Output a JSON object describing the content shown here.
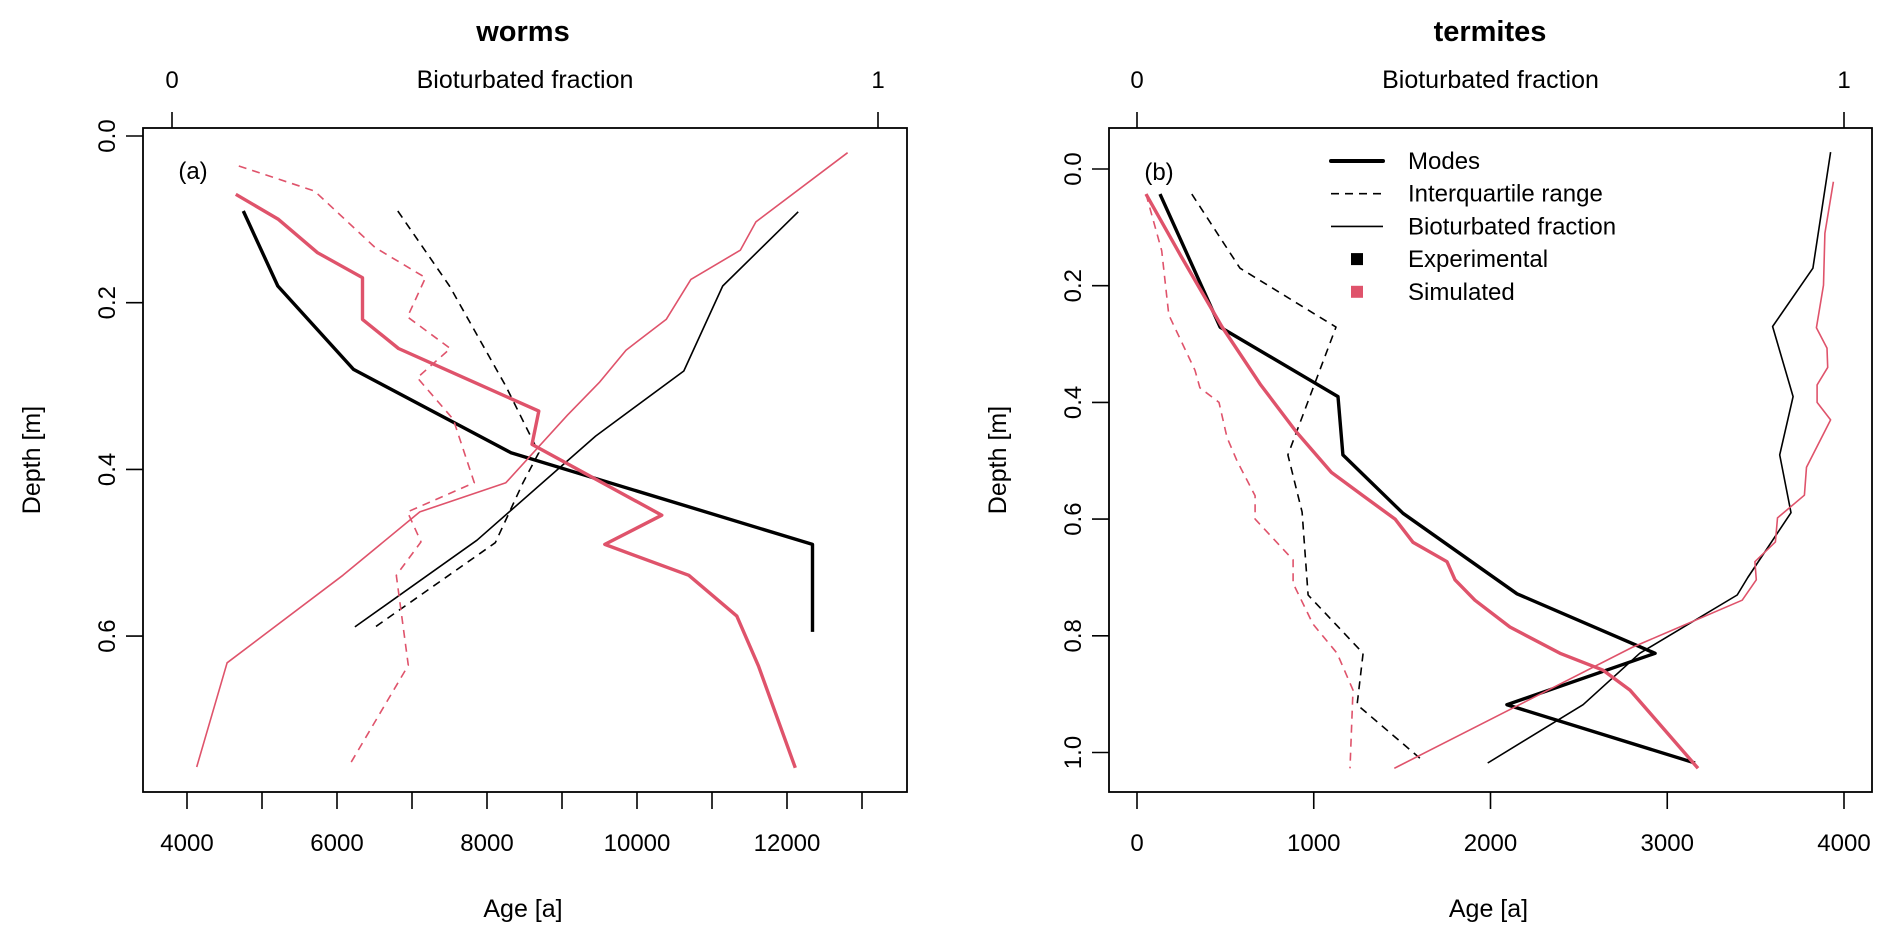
{
  "colors": {
    "experimental": "#000000",
    "simulated": "#DF536B"
  },
  "chart_data": [
    {
      "type": "line",
      "title": "worms",
      "panel_label": "(a)",
      "xlabel": "Age [a]",
      "ylabel": "Depth [m]",
      "top_axis_label": "Bioturbated fraction",
      "xlim": [
        3250,
        13550
      ],
      "ylim": [
        0.79,
        -0.01
      ],
      "xticks": [
        4000,
        5000,
        6000,
        7000,
        8000,
        9000,
        10000,
        11000,
        12000,
        13000
      ],
      "xtick_labels": [
        "4000",
        "",
        "6000",
        "",
        "8000",
        "",
        "10000",
        "",
        "12000",
        ""
      ],
      "yticks": [
        0.0,
        0.2,
        0.4,
        0.6
      ],
      "ytick_labels": [
        "0.0",
        "0.2",
        "0.4",
        "0.6"
      ],
      "top_ticks": [
        0,
        1
      ],
      "top_tick_labels": [
        "0",
        "1"
      ],
      "series": [
        {
          "name": "Experimental modes",
          "axis": "age",
          "group": "experimental",
          "style": "mode",
          "points": [
            [
              4750,
              0.09
            ],
            [
              5210,
              0.18
            ],
            [
              6220,
              0.28
            ],
            [
              8320,
              0.38
            ],
            [
              12340,
              0.49
            ],
            [
              12340,
              0.595
            ]
          ]
        },
        {
          "name": "Experimental interquartile range",
          "axis": "age",
          "group": "experimental",
          "style": "iqr",
          "points": [
            [
              6810,
              0.09
            ],
            [
              7500,
              0.18
            ],
            [
              8250,
              0.3
            ],
            [
              8690,
              0.38
            ],
            [
              8480,
              0.416
            ],
            [
              8110,
              0.488
            ],
            [
              6510,
              0.589
            ]
          ]
        },
        {
          "name": "Experimental bioturbated fraction",
          "axis": "fraction",
          "group": "experimental",
          "style": "frac",
          "points": [
            [
              0.887,
              0.091
            ],
            [
              0.78,
              0.18
            ],
            [
              0.725,
              0.282
            ],
            [
              0.6,
              0.36
            ],
            [
              0.432,
              0.485
            ],
            [
              0.259,
              0.589
            ]
          ]
        },
        {
          "name": "Simulated modes",
          "axis": "age",
          "group": "simulated",
          "style": "mode",
          "points": [
            [
              4650,
              0.07
            ],
            [
              5220,
              0.1
            ],
            [
              5740,
              0.14
            ],
            [
              6340,
              0.17
            ],
            [
              6340,
              0.22
            ],
            [
              6820,
              0.255
            ],
            [
              8690,
              0.33
            ],
            [
              8600,
              0.37
            ],
            [
              10330,
              0.455
            ],
            [
              9570,
              0.49
            ],
            [
              10690,
              0.527
            ],
            [
              11330,
              0.576
            ],
            [
              11620,
              0.636
            ],
            [
              12110,
              0.758
            ]
          ]
        },
        {
          "name": "Simulated interquartile range",
          "axis": "age",
          "group": "simulated",
          "style": "iqr",
          "points": [
            [
              4690,
              0.036
            ],
            [
              5700,
              0.066
            ],
            [
              6510,
              0.134
            ],
            [
              7180,
              0.17
            ],
            [
              6940,
              0.217
            ],
            [
              7510,
              0.255
            ],
            [
              7070,
              0.29
            ],
            [
              7550,
              0.34
            ],
            [
              7830,
              0.416
            ],
            [
              6940,
              0.451
            ],
            [
              7120,
              0.487
            ],
            [
              6790,
              0.527
            ],
            [
              6950,
              0.635
            ],
            [
              6150,
              0.757
            ]
          ]
        },
        {
          "name": "Simulated bioturbated fraction",
          "axis": "fraction",
          "group": "simulated",
          "style": "frac",
          "points": [
            [
              0.957,
              0.02
            ],
            [
              0.827,
              0.103
            ],
            [
              0.805,
              0.137
            ],
            [
              0.735,
              0.172
            ],
            [
              0.7,
              0.22
            ],
            [
              0.643,
              0.257
            ],
            [
              0.606,
              0.295
            ],
            [
              0.56,
              0.335
            ],
            [
              0.473,
              0.416
            ],
            [
              0.351,
              0.451
            ],
            [
              0.242,
              0.527
            ],
            [
              0.078,
              0.632
            ],
            [
              0.035,
              0.757
            ]
          ]
        }
      ]
    },
    {
      "type": "line",
      "title": "termites",
      "panel_label": "(b)",
      "xlabel": "Age [a]",
      "ylabel": "Depth [m]",
      "top_axis_label": "Bioturbated fraction",
      "xlim": [
        -160,
        4160
      ],
      "ylim": [
        1.07,
        -0.07
      ],
      "xticks": [
        0,
        1000,
        2000,
        3000,
        4000
      ],
      "xtick_labels": [
        "0",
        "1000",
        "2000",
        "3000",
        "4000"
      ],
      "yticks": [
        0.0,
        0.2,
        0.4,
        0.6,
        0.8,
        1.0
      ],
      "ytick_labels": [
        "0.0",
        "0.2",
        "0.4",
        "0.6",
        "0.8",
        "1.0"
      ],
      "top_ticks": [
        0,
        1
      ],
      "top_tick_labels": [
        "0",
        "1"
      ],
      "legend": {
        "position": "top-center",
        "items": [
          {
            "label": "Modes",
            "kind": "thick-line"
          },
          {
            "label": "Interquartile range",
            "kind": "dashed-line"
          },
          {
            "label": "Bioturbated fraction",
            "kind": "thin-line"
          },
          {
            "label": "Experimental",
            "kind": "square-experimental"
          },
          {
            "label": "Simulated",
            "kind": "square-simulated"
          }
        ]
      },
      "series": [
        {
          "name": "Experimental modes",
          "axis": "age",
          "group": "experimental",
          "style": "mode",
          "points": [
            [
              130,
              0.043
            ],
            [
              470,
              0.271
            ],
            [
              1137,
              0.39
            ],
            [
              1165,
              0.49
            ],
            [
              1505,
              0.59
            ],
            [
              2150,
              0.728
            ],
            [
              2931,
              0.83
            ],
            [
              2093,
              0.918
            ],
            [
              3157,
              1.018
            ]
          ]
        },
        {
          "name": "Experimental interquartile range",
          "axis": "age",
          "group": "experimental",
          "style": "iqr",
          "points": [
            [
              310,
              0.043
            ],
            [
              583,
              0.17
            ],
            [
              1126,
              0.271
            ],
            [
              854,
              0.49
            ],
            [
              934,
              0.588
            ],
            [
              968,
              0.73
            ],
            [
              1279,
              0.83
            ],
            [
              1245,
              0.918
            ],
            [
              1601,
              1.01
            ]
          ]
        },
        {
          "name": "Experimental bioturbated fraction",
          "axis": "fraction",
          "group": "experimental",
          "style": "frac",
          "points": [
            [
              0.981,
              -0.029
            ],
            [
              0.956,
              0.17
            ],
            [
              0.899,
              0.27
            ],
            [
              0.928,
              0.39
            ],
            [
              0.909,
              0.49
            ],
            [
              0.925,
              0.589
            ],
            [
              0.864,
              0.7
            ],
            [
              0.849,
              0.73
            ],
            [
              0.711,
              0.83
            ],
            [
              0.631,
              0.918
            ],
            [
              0.496,
              1.018
            ]
          ]
        },
        {
          "name": "Simulated modes",
          "axis": "age",
          "group": "simulated",
          "style": "mode",
          "points": [
            [
              51,
              0.043
            ],
            [
              250,
              0.15
            ],
            [
              480,
              0.27
            ],
            [
              700,
              0.37
            ],
            [
              900,
              0.45
            ],
            [
              1100,
              0.52
            ],
            [
              1279,
              0.56
            ],
            [
              1460,
              0.6
            ],
            [
              1562,
              0.64
            ],
            [
              1754,
              0.673
            ],
            [
              1799,
              0.704
            ],
            [
              1912,
              0.739
            ],
            [
              2110,
              0.785
            ],
            [
              2393,
              0.83
            ],
            [
              2637,
              0.859
            ],
            [
              2789,
              0.893
            ],
            [
              3174,
              1.027
            ]
          ]
        },
        {
          "name": "Simulated interquartile range",
          "axis": "age",
          "group": "simulated",
          "style": "iqr",
          "points": [
            [
              51,
              0.043
            ],
            [
              140,
              0.14
            ],
            [
              180,
              0.25
            ],
            [
              328,
              0.345
            ],
            [
              356,
              0.375
            ],
            [
              464,
              0.4
            ],
            [
              509,
              0.46
            ],
            [
              566,
              0.5
            ],
            [
              668,
              0.56
            ],
            [
              668,
              0.6
            ],
            [
              883,
              0.67
            ],
            [
              883,
              0.71
            ],
            [
              996,
              0.78
            ],
            [
              1132,
              0.83
            ],
            [
              1222,
              0.893
            ],
            [
              1205,
              1.027
            ]
          ]
        },
        {
          "name": "Simulated bioturbated fraction",
          "axis": "fraction",
          "group": "simulated",
          "style": "frac",
          "points": [
            [
              0.985,
              0.022
            ],
            [
              0.973,
              0.11
            ],
            [
              0.971,
              0.199
            ],
            [
              0.961,
              0.272
            ],
            [
              0.976,
              0.307
            ],
            [
              0.977,
              0.34
            ],
            [
              0.962,
              0.37
            ],
            [
              0.962,
              0.4
            ],
            [
              0.981,
              0.43
            ],
            [
              0.947,
              0.511
            ],
            [
              0.944,
              0.559
            ],
            [
              0.906,
              0.598
            ],
            [
              0.903,
              0.639
            ],
            [
              0.874,
              0.673
            ],
            [
              0.876,
              0.704
            ],
            [
              0.856,
              0.739
            ],
            [
              0.7,
              0.82
            ],
            [
              0.364,
              1.027
            ]
          ]
        }
      ]
    }
  ]
}
